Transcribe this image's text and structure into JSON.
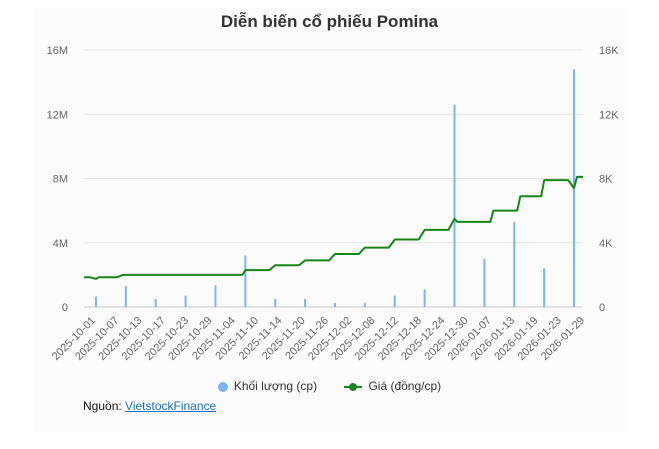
{
  "chart_data": {
    "type": "bar+line",
    "title": "Diễn biến cổ phiếu Pomina",
    "left_axis": {
      "ticks": [
        "0",
        "4M",
        "8M",
        "12M",
        "16M"
      ],
      "ylim": [
        0,
        16000000
      ]
    },
    "right_axis": {
      "ticks": [
        "0",
        "4K",
        "8K",
        "12K",
        "16K"
      ],
      "ylim": [
        0,
        16000
      ]
    },
    "x_tick_labels": [
      "2025-10-01",
      "2025-10-07",
      "2025-10-13",
      "2025-10-17",
      "2025-10-23",
      "2025-10-29",
      "2025-11-04",
      "2025-11-10",
      "2025-11-14",
      "2025-11-20",
      "2025-11-26",
      "2025-12-02",
      "2025-12-08",
      "2025-12-12",
      "2025-12-18",
      "2025-12-24",
      "2025-12-30",
      "2026-01-07",
      "2026-01-13",
      "2026-01-19",
      "2026-01-23",
      "2026-01-29"
    ],
    "series": [
      {
        "name": "Khối lượng (cp)",
        "type": "bar",
        "axis": "left",
        "color": "#7cb5ec",
        "points": [
          {
            "x": 4,
            "y": 650000
          },
          {
            "x": 14,
            "y": 1300000
          },
          {
            "x": 24,
            "y": 500000
          },
          {
            "x": 34,
            "y": 700000
          },
          {
            "x": 44,
            "y": 1350000
          },
          {
            "x": 54,
            "y": 3200000
          },
          {
            "x": 64,
            "y": 500000
          },
          {
            "x": 74,
            "y": 500000
          },
          {
            "x": 84,
            "y": 250000
          },
          {
            "x": 94,
            "y": 250000
          },
          {
            "x": 104,
            "y": 700000
          },
          {
            "x": 114,
            "y": 1100000
          },
          {
            "x": 124,
            "y": 12600000
          },
          {
            "x": 134,
            "y": 3000000
          },
          {
            "x": 144,
            "y": 5300000
          },
          {
            "x": 154,
            "y": 2400000
          },
          {
            "x": 164,
            "y": 14800000
          }
        ]
      },
      {
        "name": "Giá (đồng/cp)",
        "type": "line",
        "axis": "right",
        "color": "#178617",
        "points": [
          {
            "x": 0,
            "y": 1850
          },
          {
            "x": 2,
            "y": 1850
          },
          {
            "x": 4,
            "y": 1750
          },
          {
            "x": 5,
            "y": 1850
          },
          {
            "x": 11,
            "y": 1850
          },
          {
            "x": 13,
            "y": 2000
          },
          {
            "x": 53,
            "y": 2000
          },
          {
            "x": 54,
            "y": 2300
          },
          {
            "x": 62,
            "y": 2300
          },
          {
            "x": 64,
            "y": 2600
          },
          {
            "x": 72,
            "y": 2600
          },
          {
            "x": 74,
            "y": 2900
          },
          {
            "x": 82,
            "y": 2900
          },
          {
            "x": 84,
            "y": 3300
          },
          {
            "x": 92,
            "y": 3300
          },
          {
            "x": 94,
            "y": 3700
          },
          {
            "x": 102,
            "y": 3700
          },
          {
            "x": 104,
            "y": 4200
          },
          {
            "x": 112,
            "y": 4200
          },
          {
            "x": 114,
            "y": 4800
          },
          {
            "x": 122,
            "y": 4800
          },
          {
            "x": 124,
            "y": 5500
          },
          {
            "x": 125,
            "y": 5300
          },
          {
            "x": 136,
            "y": 5300
          },
          {
            "x": 137,
            "y": 6000
          },
          {
            "x": 145,
            "y": 6000
          },
          {
            "x": 146,
            "y": 6900
          },
          {
            "x": 153,
            "y": 6900
          },
          {
            "x": 154,
            "y": 7900
          },
          {
            "x": 162,
            "y": 7900
          },
          {
            "x": 164,
            "y": 7400
          },
          {
            "x": 165,
            "y": 8100
          },
          {
            "x": 167,
            "y": 8100
          }
        ]
      }
    ],
    "x_range": [
      0,
      167
    ],
    "legend": {
      "position": "bottom"
    },
    "grid": true
  },
  "source": {
    "label": "Nguồn: ",
    "link": "VietstockFinance"
  },
  "colors": {
    "grid": "#e6e6e6",
    "axis_text": "#666666"
  }
}
